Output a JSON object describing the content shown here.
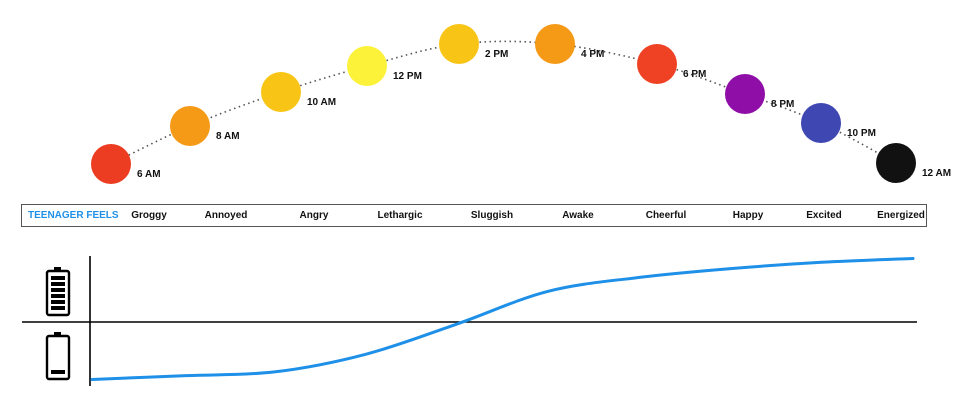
{
  "colors": {
    "energy_line": "#1e90e8",
    "title_accent": "#1e90e8",
    "dotted_arc": "#555555",
    "axis": "#000000"
  },
  "timeline": {
    "points": [
      {
        "time": "6 AM",
        "color": "#ec3c22"
      },
      {
        "time": "8 AM",
        "color": "#f59a17"
      },
      {
        "time": "10 AM",
        "color": "#f8c516"
      },
      {
        "time": "12 PM",
        "color": "#fdf23a"
      },
      {
        "time": "2 PM",
        "color": "#f8c516"
      },
      {
        "time": "4 PM",
        "color": "#f59a17"
      },
      {
        "time": "6 PM",
        "color": "#ef4224"
      },
      {
        "time": "8 PM",
        "color": "#8f0ea8"
      },
      {
        "time": "10 PM",
        "color": "#3f47b3"
      },
      {
        "time": "12 AM",
        "color": "#111111"
      }
    ]
  },
  "feelings": {
    "title": "TEENAGER FEELS",
    "items": [
      "Groggy",
      "Annoyed",
      "Angry",
      "Lethargic",
      "Sluggish",
      "Awake",
      "Cheerful",
      "Happy",
      "Excited",
      "Energized"
    ]
  },
  "energy_chart": {
    "icons": {
      "high": "battery-full-icon",
      "low": "battery-low-icon"
    },
    "curve": [
      0.02,
      0.05,
      0.08,
      0.22,
      0.46,
      0.72,
      0.83,
      0.9,
      0.95,
      0.98
    ]
  }
}
